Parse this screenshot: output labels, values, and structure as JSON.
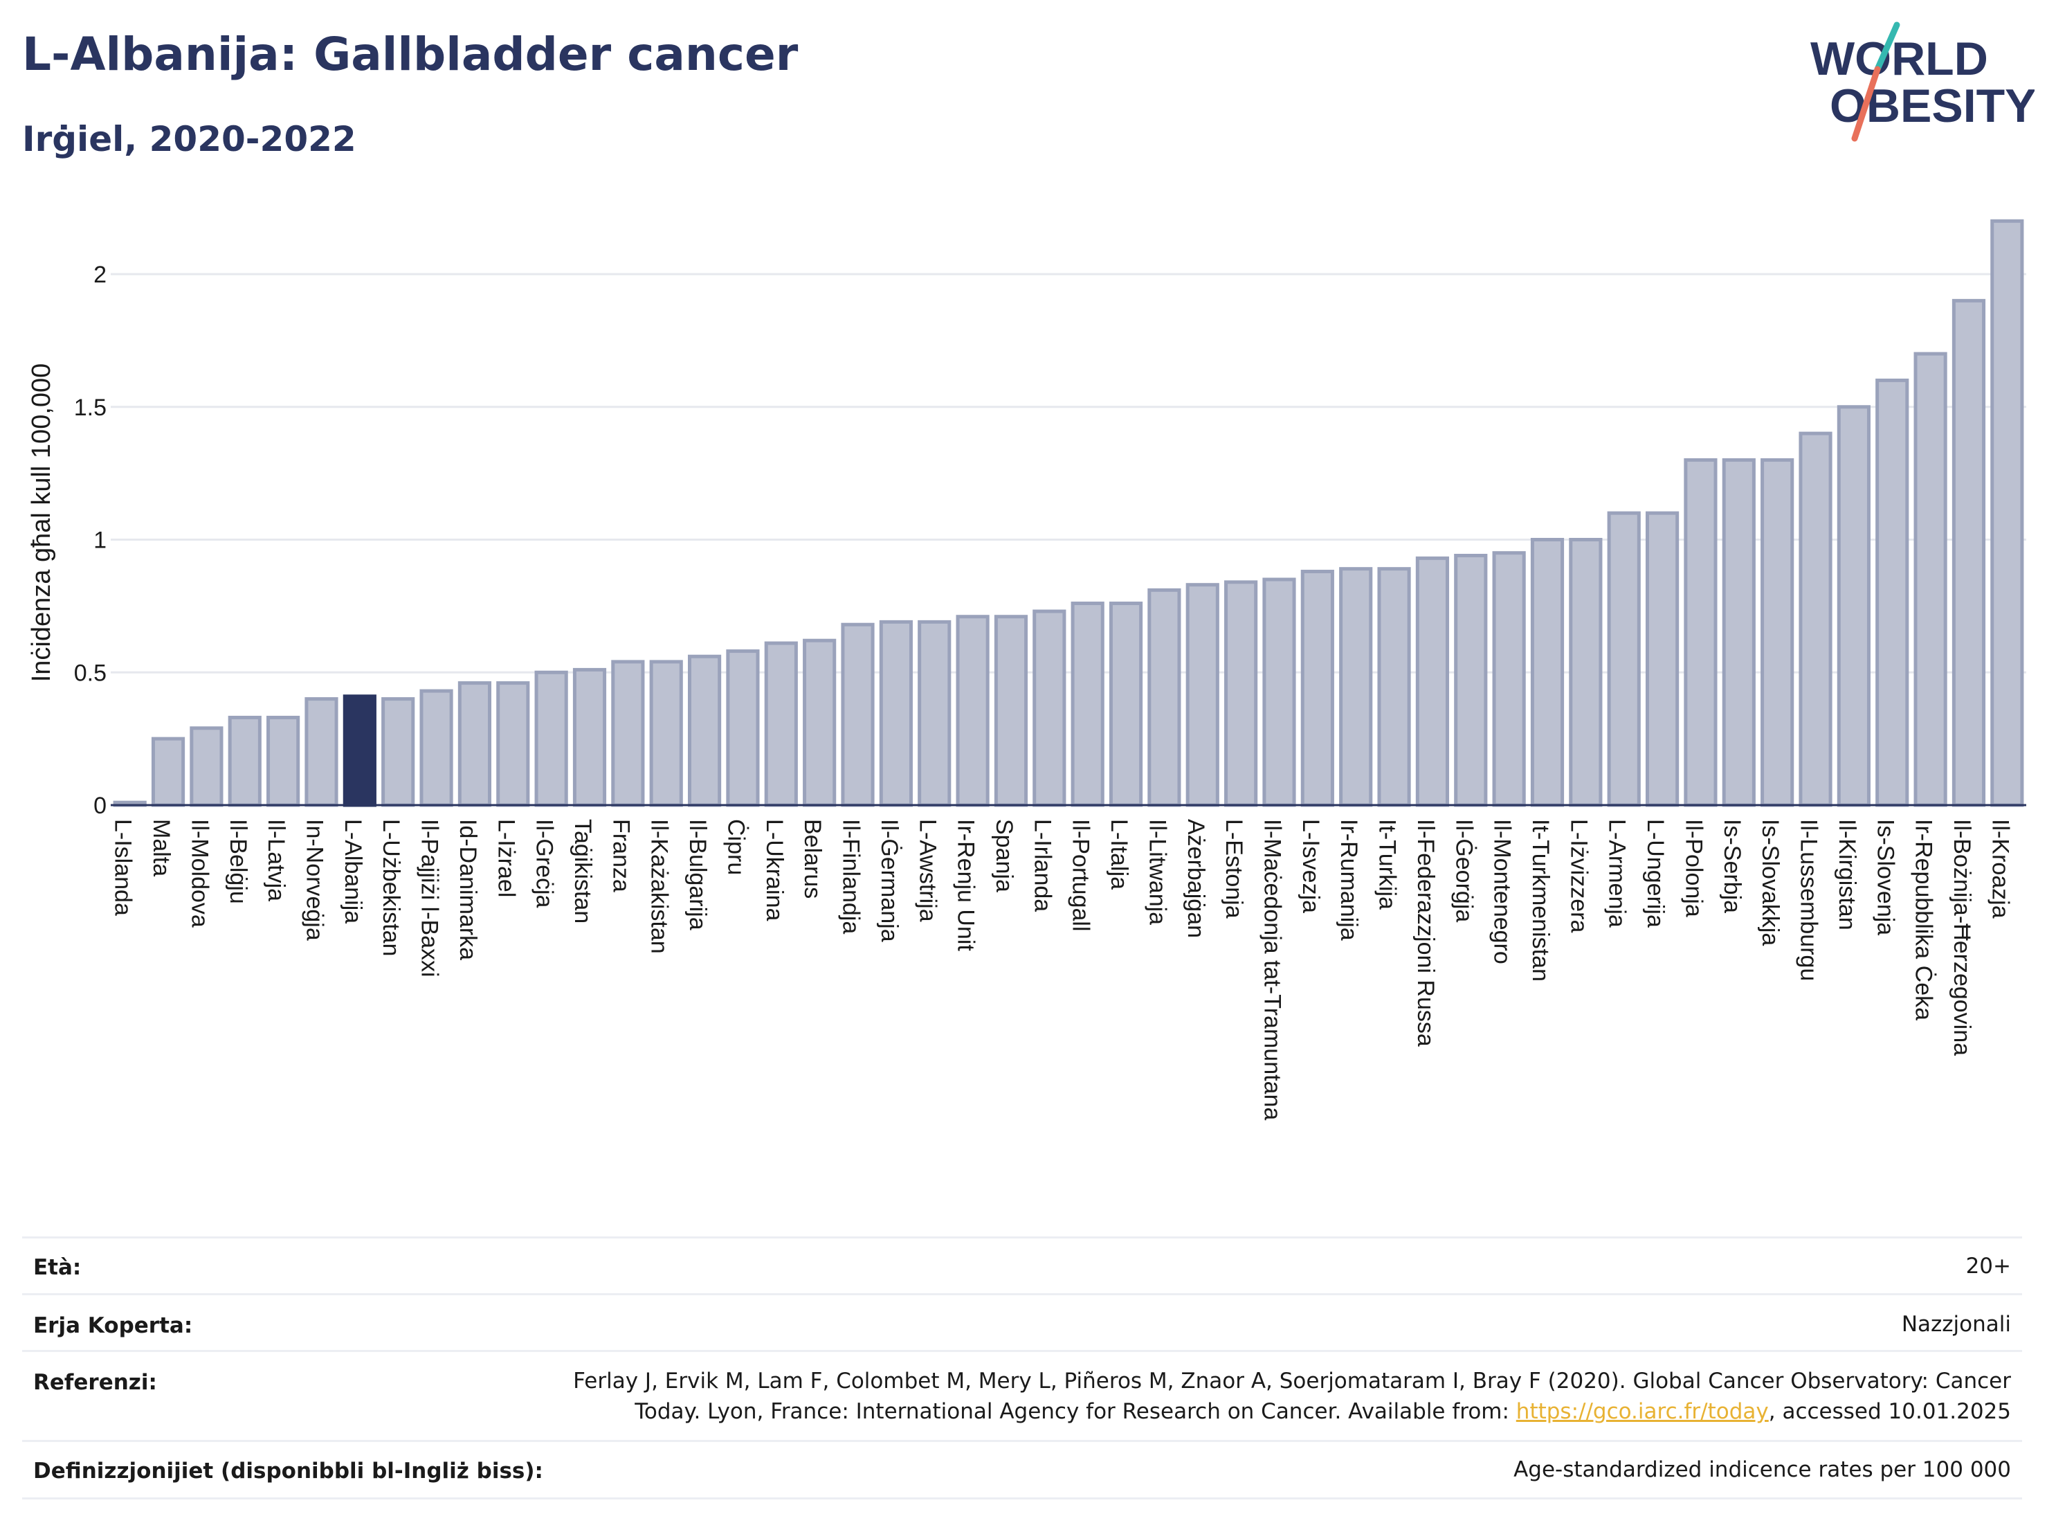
{
  "title": "L-Albanija: Gallbladder cancer",
  "subtitle": "Irġiel, 2020-2022",
  "logo": {
    "line1": "WORLD",
    "line2": "OBESITY"
  },
  "colors": {
    "bar_fill": "#bcc1d1",
    "bar_stroke": "#9aa2bb",
    "highlight_fill": "#2a3560",
    "text": "#2a3560",
    "link": "#e8b233",
    "logo_teal": "#35b8b0",
    "logo_coral": "#e8705a"
  },
  "chart_data": {
    "type": "bar",
    "title": "L-Albanija: Gallbladder cancer",
    "subtitle": "Irġiel, 2020-2022",
    "ylabel": "Inċidenza għal kull 100,000",
    "xlabel": "",
    "ylim": [
      0,
      2.2
    ],
    "yticks": [
      0,
      0.5,
      1,
      1.5,
      2
    ],
    "ytick_labels": [
      "0",
      "0.5",
      "1",
      "1.5",
      "2"
    ],
    "grid": true,
    "highlight": "L-Albanija",
    "categories": [
      "L-Islanda",
      "Malta",
      "Il-Moldova",
      "Il-Belġju",
      "Il-Latvja",
      "In-Norveġja",
      "L-Albanija",
      "L-Użbekistan",
      "Il-Pajjiżi l-Baxxi",
      "Id-Danimarka",
      "L-Iżrael",
      "Il-Greċja",
      "Taġikistan",
      "Franza",
      "Il-Każakistan",
      "Il-Bulgarija",
      "Ċipru",
      "L-Ukraina",
      "Belarus",
      "Il-Finlandja",
      "Il-Ġermanja",
      "L-Awstrija",
      "Ir-Renju Unit",
      "Spanja",
      "L-Irlanda",
      "Il-Portugall",
      "L-Italja",
      "Il-Litwanja",
      "Ażerbajġan",
      "L-Estonja",
      "Il-Maċedonja tat-Tramuntana",
      "L-Isvezja",
      "Ir-Rumanija",
      "It-Turkija",
      "Il-Federazzjoni Russa",
      "Il-Ġeorġja",
      "Il-Montenegro",
      "It-Turkmenistan",
      "L-Iżvizzera",
      "L-Armenja",
      "L-Ungerija",
      "Il-Polonja",
      "Is-Serbja",
      "Is-Slovakkja",
      "Il-Lussemburgu",
      "Il-Kirgistan",
      "Is-Slovenja",
      "Ir-Repubblika Ċeka",
      "Il-Bożnija-Ħerzegovina",
      "Il-Kroazja"
    ],
    "values": [
      0.01,
      0.25,
      0.29,
      0.33,
      0.33,
      0.4,
      0.41,
      0.4,
      0.43,
      0.46,
      0.46,
      0.5,
      0.51,
      0.54,
      0.54,
      0.56,
      0.58,
      0.61,
      0.62,
      0.68,
      0.69,
      0.69,
      0.71,
      0.71,
      0.73,
      0.76,
      0.76,
      0.81,
      0.83,
      0.84,
      0.85,
      0.88,
      0.89,
      0.89,
      0.93,
      0.94,
      0.95,
      1.0,
      1.0,
      1.1,
      1.1,
      1.3,
      1.3,
      1.3,
      1.4,
      1.5,
      1.6,
      1.7,
      1.9,
      2.2
    ]
  },
  "meta": {
    "age_label": "Età:",
    "age_value": "20+",
    "coverage_label": "Erja Koperta:",
    "coverage_value": "Nazzjonali",
    "reference_label": "Referenzi:",
    "reference_line1": "Ferlay J, Ervik M, Lam F, Colombet M, Mery L, Piñeros M, Znaor A, Soerjomataram I, Bray F (2020). Global Cancer Observatory: Cancer",
    "reference_line2_pre": "Today. Lyon, France: International Agency for Research on Cancer. Available from: ",
    "reference_link": "https://gco.iarc.fr/today",
    "reference_line2_post": ", accessed 10.01.2025",
    "definitions_label": "Definizzjonijiet (disponibbli bl-Ingliż biss):",
    "definitions_value": "Age-standardized indicence rates per 100 000"
  }
}
